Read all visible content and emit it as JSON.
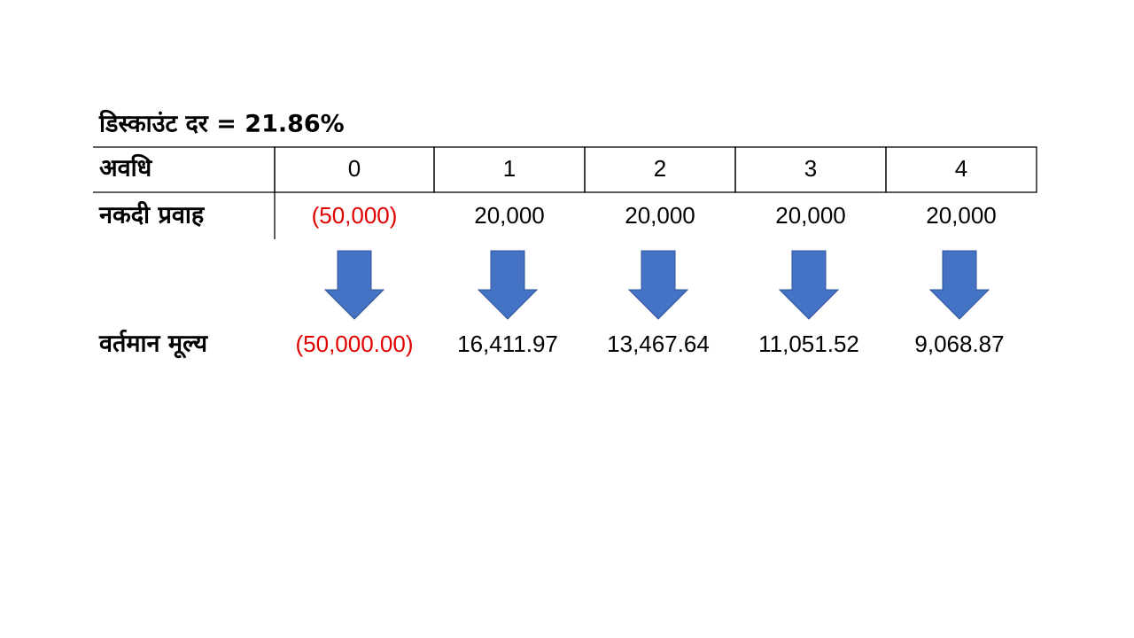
{
  "title": "डिस्काउंट दर = 21.86%",
  "table": {
    "header": {
      "label": "अवधि",
      "periods": [
        "0",
        "1",
        "2",
        "3",
        "4"
      ]
    },
    "cash_flow": {
      "label": "नकदी प्रवाह",
      "values": [
        "(50,000)",
        "20,000",
        "20,000",
        "20,000",
        "20,000"
      ]
    },
    "present_value": {
      "label": "वर्तमान मूल्य",
      "values": [
        "(50,000.00)",
        "16,411.97",
        "13,467.64",
        "11,051.52",
        "9,068.87"
      ]
    }
  }
}
